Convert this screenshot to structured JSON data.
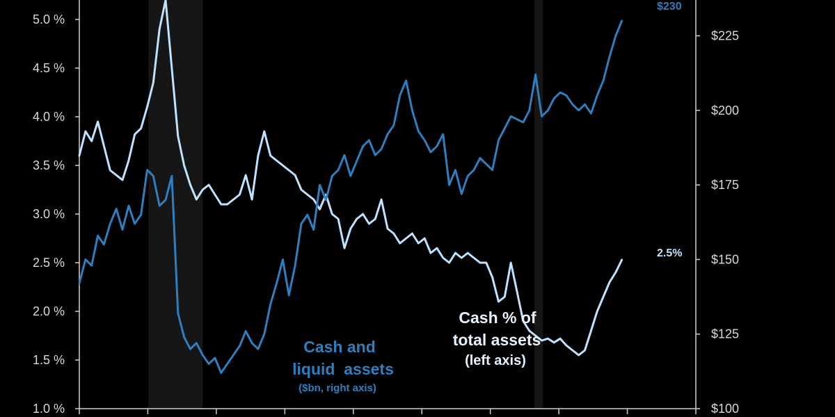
{
  "chart_data": {
    "type": "line",
    "colors": {
      "background": "#000000",
      "cash_pct": "#bfe3ff",
      "cash_bn": "#2f7fbf",
      "recession": "#161616",
      "axis": "#cfcfcf",
      "tick_text": "#d9d9d9"
    },
    "left_axis": {
      "ylim": [
        1.0,
        5.2
      ],
      "ticks": [
        "1.0 %",
        "1.5 %",
        "2.0 %",
        "2.5 %",
        "3.0 %",
        "3.5 %",
        "4.0 %",
        "4.5 %",
        "5.0 %"
      ],
      "tick_values": [
        1.0,
        1.5,
        2.0,
        2.5,
        3.0,
        3.5,
        4.0,
        4.5,
        5.0
      ]
    },
    "right_axis": {
      "ylim": [
        100,
        237
      ],
      "ticks": [
        "$100",
        "$125",
        "$150",
        "$175",
        "$200",
        "$225"
      ],
      "tick_values": [
        100,
        125,
        150,
        175,
        200,
        225
      ]
    },
    "x_range": [
      0,
      100
    ],
    "recession_bands": [
      [
        11.2,
        20.0
      ],
      [
        73.8,
        75.2
      ]
    ],
    "series": [
      {
        "name": "Cash % of total assets",
        "axis": "left",
        "x": [
          0,
          1,
          2,
          3,
          4,
          5,
          6,
          7,
          8,
          9,
          10,
          11,
          12,
          13,
          14,
          15,
          16,
          17,
          18,
          19,
          20,
          21,
          22,
          23,
          24,
          25,
          26,
          27,
          28,
          29,
          30,
          31,
          32,
          33,
          34,
          35,
          36,
          37,
          38,
          39,
          40,
          41,
          42,
          43,
          44,
          45,
          46,
          47,
          48,
          49,
          50,
          51,
          52,
          53,
          54,
          55,
          56,
          57,
          58,
          59,
          60,
          61,
          62,
          63,
          64,
          65,
          66,
          67,
          68,
          69,
          70,
          71,
          72,
          73,
          74,
          75,
          76,
          77,
          78,
          79,
          80,
          81,
          82,
          83,
          84,
          85,
          86,
          87,
          88
        ],
        "values": [
          3.6,
          3.85,
          3.75,
          3.95,
          3.7,
          3.45,
          3.4,
          3.35,
          3.55,
          3.82,
          3.88,
          4.1,
          4.35,
          4.9,
          5.2,
          4.5,
          3.8,
          3.5,
          3.3,
          3.15,
          3.25,
          3.3,
          3.2,
          3.1,
          3.1,
          3.15,
          3.2,
          3.4,
          3.15,
          3.6,
          3.85,
          3.6,
          3.55,
          3.5,
          3.45,
          3.4,
          3.25,
          3.2,
          3.15,
          3.05,
          3.2,
          3.0,
          2.95,
          2.65,
          2.85,
          2.95,
          3.0,
          2.9,
          2.95,
          3.15,
          2.85,
          2.8,
          2.7,
          2.75,
          2.8,
          2.7,
          2.75,
          2.6,
          2.65,
          2.55,
          2.5,
          2.6,
          2.55,
          2.6,
          2.55,
          2.5,
          2.5,
          2.35,
          2.1,
          2.15,
          2.5,
          2.2,
          1.9,
          1.8,
          1.75,
          1.7,
          1.72,
          1.68,
          1.72,
          1.65,
          1.6,
          1.55,
          1.6,
          1.8,
          2.0,
          2.15,
          2.3,
          2.4,
          2.53
        ]
      },
      {
        "name": "Cash and liquid assets",
        "axis": "right",
        "x": [
          0,
          1,
          2,
          3,
          4,
          5,
          6,
          7,
          8,
          9,
          10,
          11,
          12,
          13,
          14,
          15,
          16,
          17,
          18,
          19,
          20,
          21,
          22,
          23,
          24,
          25,
          26,
          27,
          28,
          29,
          30,
          31,
          32,
          33,
          34,
          35,
          36,
          37,
          38,
          39,
          40,
          41,
          42,
          43,
          44,
          45,
          46,
          47,
          48,
          49,
          50,
          51,
          52,
          53,
          54,
          55,
          56,
          57,
          58,
          59,
          60,
          61,
          62,
          63,
          64,
          65,
          66,
          67,
          68,
          69,
          70,
          71,
          72,
          73,
          74,
          75,
          76,
          77,
          78,
          79,
          80,
          81,
          82,
          83,
          84,
          85,
          86,
          87,
          88
        ],
        "values": [
          142,
          150,
          148,
          158,
          155,
          162,
          167,
          160,
          168,
          162,
          165,
          180,
          178,
          168,
          170,
          178,
          132,
          124,
          120,
          122,
          118,
          115,
          117,
          112,
          115,
          118,
          121,
          126,
          122,
          120,
          125,
          135,
          142,
          150,
          138,
          148,
          162,
          165,
          160,
          175,
          170,
          178,
          180,
          185,
          178,
          183,
          188,
          190,
          185,
          187,
          192,
          195,
          205,
          210,
          200,
          193,
          190,
          186,
          188,
          192,
          175,
          180,
          172,
          178,
          180,
          184,
          182,
          180,
          190,
          194,
          198,
          197,
          196,
          200,
          212,
          198,
          200,
          204,
          206,
          205,
          202,
          200,
          202,
          199,
          205,
          210,
          218,
          225,
          230
        ]
      }
    ],
    "annotations": {
      "cash_bn_label": [
        "Cash and",
        "liquid  assets"
      ],
      "cash_bn_sub": "($bn, right axis)",
      "cash_pct_label": [
        "Cash % of",
        "total assets",
        "(left axis)"
      ],
      "end_label_pct": "2.5%",
      "end_label_bn": "$230"
    }
  }
}
